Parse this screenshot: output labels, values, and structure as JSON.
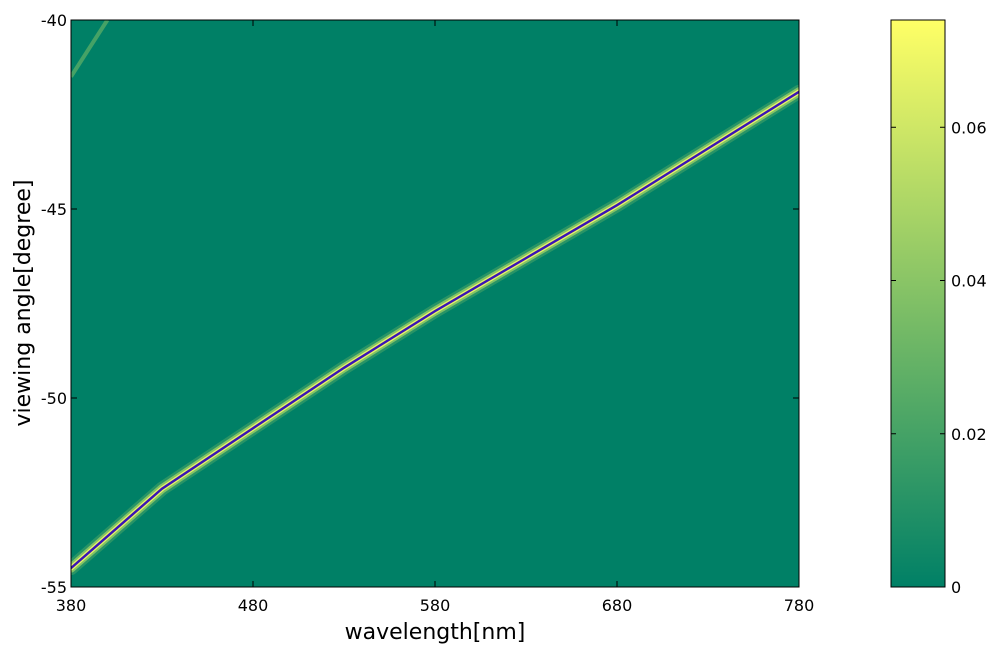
{
  "chart_data": {
    "type": "heatmap",
    "title": "",
    "xlabel": "wavelength[nm]",
    "ylabel": "viewing angle[degree]",
    "xlim": [
      380,
      780
    ],
    "ylim": [
      -55,
      -40
    ],
    "x_ticks": [
      "380",
      "480",
      "580",
      "680",
      "780"
    ],
    "y_ticks": [
      "-40",
      "-45",
      "-50",
      "-55"
    ],
    "background_value": 0,
    "colormap": {
      "name": "summer",
      "low_color": "#008066",
      "high_color": "#ffff66",
      "range": [
        0,
        0.074
      ],
      "ticks": [
        "0",
        "0.02",
        "0.04",
        "0.06"
      ]
    },
    "ridge": {
      "description_value_at_peak": 0.074,
      "center_line_color": "#3a14b4",
      "points": [
        {
          "x": 380,
          "y": -54.5
        },
        {
          "x": 430,
          "y": -52.4
        },
        {
          "x": 480,
          "y": -50.8
        },
        {
          "x": 530,
          "y": -49.2
        },
        {
          "x": 580,
          "y": -47.7
        },
        {
          "x": 630,
          "y": -46.3
        },
        {
          "x": 680,
          "y": -44.9
        },
        {
          "x": 730,
          "y": -43.4
        },
        {
          "x": 780,
          "y": -41.9
        }
      ]
    },
    "secondary_ridge": {
      "points": [
        {
          "x": 380,
          "y": -41.5
        },
        {
          "x": 392,
          "y": -40.6
        },
        {
          "x": 400,
          "y": -40.0
        }
      ]
    },
    "grid": false
  }
}
